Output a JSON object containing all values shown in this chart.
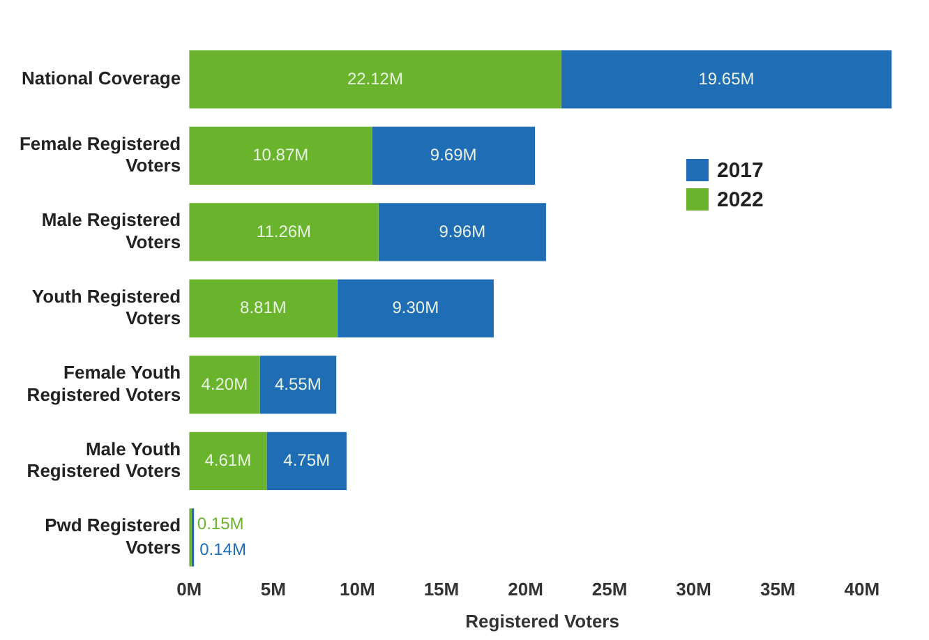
{
  "chart_data": {
    "type": "bar",
    "orientation": "horizontal",
    "stacked": true,
    "categories": [
      "National Coverage",
      "Female Registered Voters",
      "Male Registered Voters",
      "Youth Registered Voters",
      "Female Youth Registered Voters",
      "Male Youth Registered Voters",
      "Pwd Registered Voters"
    ],
    "series": [
      {
        "name": "2022",
        "color": "#6ab42d",
        "values": [
          22.12,
          10.87,
          11.26,
          8.81,
          4.2,
          4.61,
          0.15
        ],
        "value_labels": [
          "22.12M",
          "10.87M",
          "11.26M",
          "8.81M",
          "4.20M",
          "4.61M",
          "0.15M"
        ]
      },
      {
        "name": "2017",
        "color": "#1f6db5",
        "values": [
          19.65,
          9.69,
          9.96,
          9.3,
          4.55,
          4.75,
          0.14
        ],
        "value_labels": [
          "19.65M",
          "9.69M",
          "9.96M",
          "9.30M",
          "4.55M",
          "4.75M",
          "0.14M"
        ]
      }
    ],
    "xlabel": "Registered Voters",
    "xlim": [
      0,
      42
    ],
    "xticks": [
      {
        "value": 0,
        "label": "0M"
      },
      {
        "value": 5,
        "label": "5M"
      },
      {
        "value": 10,
        "label": "10M"
      },
      {
        "value": 15,
        "label": "15M"
      },
      {
        "value": 20,
        "label": "20M"
      },
      {
        "value": 25,
        "label": "25M"
      },
      {
        "value": 30,
        "label": "30M"
      },
      {
        "value": 35,
        "label": "35M"
      },
      {
        "value": 40,
        "label": "40M"
      }
    ],
    "legend": "right",
    "grid": false
  }
}
